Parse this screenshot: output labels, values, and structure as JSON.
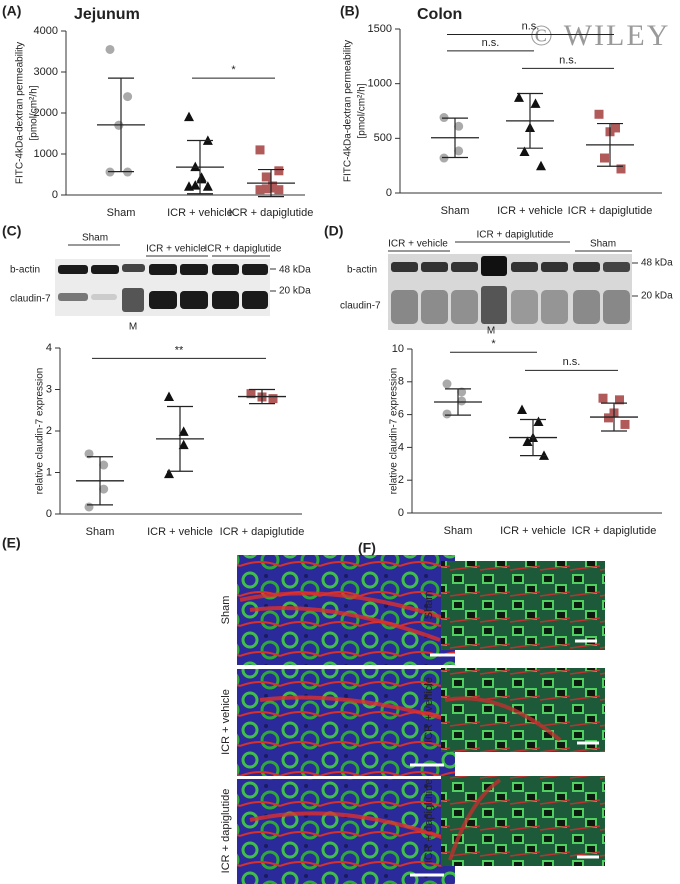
{
  "chart_data": [
    {
      "type": "dot",
      "panel": "(A)",
      "title": "Jejunum",
      "y_label": [
        "FITC-4kDa-dextran permeability",
        "[pmol/cm²/h]"
      ],
      "ylim": [
        0,
        4000
      ],
      "yticks": [
        0,
        1000,
        2000,
        3000,
        4000
      ],
      "groups": [
        {
          "name": "Sham",
          "color": "#aaaaaa",
          "marker": "circle",
          "values": [
            3550,
            2400,
            1700,
            1700,
            560,
            560
          ],
          "mean": 1710,
          "sd": 1140
        },
        {
          "name": "ICR + vehicle",
          "color": "#111111",
          "marker": "triangle",
          "values": [
            1900,
            1320,
            680,
            420,
            380,
            230,
            200,
            200
          ],
          "mean": 680,
          "sd": 650
        },
        {
          "name": "ICR + dapiglutide",
          "color": "#b05a5a",
          "marker": "square",
          "values": [
            1100,
            590,
            440,
            220,
            170,
            150,
            130,
            130
          ],
          "mean": 290,
          "sd": 330
        }
      ],
      "significance": [
        {
          "between": [
            "ICR + vehicle",
            "ICR + dapiglutide"
          ],
          "y": 2850,
          "label": "*"
        }
      ]
    },
    {
      "type": "dot",
      "panel": "(B)",
      "title": "Colon",
      "y_label": [
        "FITC-4kDa-dextran permeability",
        "[pmol/cm²/h]"
      ],
      "ylim": [
        0,
        1500
      ],
      "yticks": [
        0,
        500,
        1000,
        1500
      ],
      "groups": [
        {
          "name": "Sham",
          "color": "#aaaaaa",
          "marker": "circle",
          "values": [
            690,
            610,
            385,
            320
          ],
          "mean": 505,
          "sd": 180
        },
        {
          "name": "ICR + vehicle",
          "color": "#111111",
          "marker": "triangle",
          "values": [
            870,
            815,
            595,
            375,
            245
          ],
          "mean": 660,
          "sd": 250
        },
        {
          "name": "ICR + dapiglutide",
          "color": "#b05a5a",
          "marker": "square",
          "values": [
            720,
            595,
            560,
            320,
            220
          ],
          "mean": 440,
          "sd": 195
        }
      ],
      "significance": [
        {
          "between": [
            "Sham",
            "ICR + dapiglutide"
          ],
          "y": 1450,
          "label": "n.s."
        },
        {
          "between": [
            "Sham",
            "ICR + vehicle"
          ],
          "y": 1300,
          "label": "n.s."
        },
        {
          "between": [
            "ICR + vehicle",
            "ICR + dapiglutide"
          ],
          "y": 1140,
          "label": "n.s."
        }
      ]
    },
    {
      "type": "dot",
      "y_label": [
        "relative claudin-7 expression"
      ],
      "ylim": [
        0,
        4
      ],
      "yticks": [
        0,
        1,
        2,
        3,
        4
      ],
      "groups": [
        {
          "name": "Sham",
          "color": "#aaaaaa",
          "marker": "circle",
          "values": [
            1.45,
            1.18,
            0.6,
            0.17
          ],
          "mean": 0.8,
          "sd": 0.58
        },
        {
          "name": "ICR + vehicle",
          "color": "#111111",
          "marker": "triangle",
          "values": [
            2.82,
            1.98,
            1.66,
            0.96
          ],
          "mean": 1.81,
          "sd": 0.78
        },
        {
          "name": "ICR + dapiglutide",
          "color": "#b05a5a",
          "marker": "square",
          "values": [
            2.9,
            2.82,
            2.78
          ],
          "mean": 2.83,
          "sd": 0.17
        }
      ],
      "significance": [
        {
          "between": [
            "Sham",
            "ICR + dapiglutide"
          ],
          "y": 3.75,
          "label": "**"
        }
      ]
    },
    {
      "type": "dot",
      "y_label": [
        "relative claudin-7 expression"
      ],
      "ylim": [
        0,
        10
      ],
      "yticks": [
        0,
        2,
        4,
        6,
        8,
        10
      ],
      "groups": [
        {
          "name": "Sham",
          "color": "#aaaaaa",
          "marker": "circle",
          "values": [
            7.87,
            7.38,
            6.83,
            6.04
          ],
          "mean": 6.77,
          "sd": 0.8
        },
        {
          "name": "ICR + vehicle",
          "color": "#111111",
          "marker": "triangle",
          "values": [
            6.28,
            5.55,
            4.57,
            4.33,
            3.48
          ],
          "mean": 4.6,
          "sd": 1.1
        },
        {
          "name": "ICR + dapiglutide",
          "color": "#b05a5a",
          "marker": "square",
          "values": [
            7.0,
            6.9,
            6.1,
            5.8,
            5.4
          ],
          "mean": 5.85,
          "sd": 0.85
        }
      ],
      "significance": [
        {
          "between": [
            "Sham",
            "ICR + vehicle"
          ],
          "y": 9.8,
          "label": "*"
        },
        {
          "between": [
            "ICR + vehicle",
            "ICR + dapiglutide"
          ],
          "y": 8.7,
          "label": "n.s."
        }
      ]
    }
  ],
  "blots": [
    {
      "panel": "(C)",
      "groups": [
        "Sham",
        "ICR + vehicle",
        "ICR + dapiglutide"
      ],
      "rows": [
        "b-actin",
        "claudin-7"
      ],
      "sizes": [
        "48 kDa",
        "20 kDa"
      ],
      "ladder": "M"
    },
    {
      "panel": "(D)",
      "groups": [
        "ICR + vehicle",
        "ICR + dapiglutide",
        "Sham"
      ],
      "rows": [
        "b-actin",
        "claudin-7"
      ],
      "sizes": [
        "48 kDa",
        "20 kDa"
      ],
      "ladder": "M"
    }
  ],
  "images": [
    {
      "panel": "(E)",
      "rows": [
        "Sham",
        "ICR + vehicle",
        "ICR + dapiglutide"
      ]
    },
    {
      "panel": "(F)",
      "rows": [
        "Sham",
        "ICR + vehicle",
        "ICR + dapiglutide"
      ]
    }
  ],
  "watermark": "© WILEY"
}
